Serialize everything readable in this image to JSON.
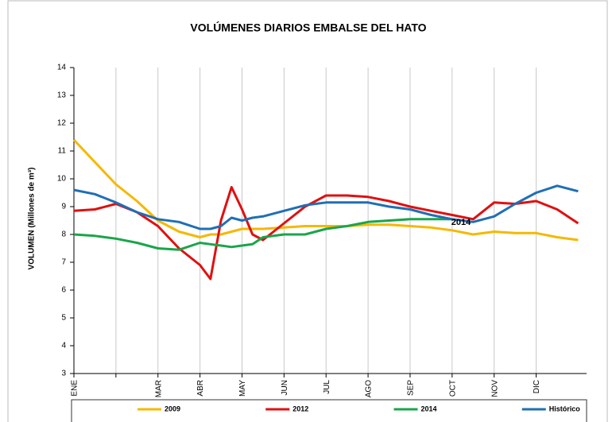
{
  "chart_data": {
    "type": "line",
    "title": "VOLÚMENES DIARIOS EMBALSE DEL HATO",
    "y_label": "VOLUMEN (Millones de m³)",
    "annotation": "2014",
    "x": [
      0,
      0.5,
      1,
      1.5,
      2,
      2.5,
      3,
      3.25,
      3.5,
      3.75,
      4,
      4.25,
      4.5,
      5,
      5.5,
      6,
      6.5,
      7,
      7.5,
      8,
      8.5,
      9,
      9.5,
      10,
      10.5,
      11,
      11.5,
      12
    ],
    "xlim": [
      0,
      12.2
    ],
    "xticks": [
      {
        "value": 0,
        "label": "ENE"
      },
      {
        "value": 1,
        "label": null
      },
      {
        "value": 2,
        "label": "MAR"
      },
      {
        "value": 3,
        "label": "ABR"
      },
      {
        "value": 4,
        "label": "MAY"
      },
      {
        "value": 5,
        "label": "JUN"
      },
      {
        "value": 6,
        "label": "JUL"
      },
      {
        "value": 7,
        "label": "AGO"
      },
      {
        "value": 8,
        "label": "SEP"
      },
      {
        "value": 9,
        "label": "OCT"
      },
      {
        "value": 10,
        "label": "NOV"
      },
      {
        "value": 11,
        "label": "DIC"
      }
    ],
    "ylim": [
      3,
      14
    ],
    "yticks": [
      3,
      4,
      5,
      6,
      7,
      8,
      9,
      10,
      11,
      12,
      13,
      14
    ],
    "grid": "x",
    "legend": "bottom",
    "series": [
      {
        "name": "2009",
        "color": "#f5b800",
        "values": [
          11.4,
          10.6,
          9.8,
          9.2,
          8.5,
          8.1,
          7.9,
          8.0,
          8.0,
          8.1,
          8.2,
          8.2,
          8.2,
          8.25,
          8.3,
          8.3,
          8.3,
          8.35,
          8.35,
          8.3,
          8.25,
          8.15,
          8.0,
          8.1,
          8.05,
          8.05,
          7.9,
          7.8
        ]
      },
      {
        "name": "2012",
        "color": "#e01010",
        "values": [
          8.85,
          8.9,
          9.1,
          8.8,
          8.3,
          7.5,
          6.9,
          6.4,
          8.5,
          9.7,
          8.9,
          8.0,
          7.8,
          8.4,
          9.0,
          9.4,
          9.4,
          9.35,
          9.2,
          9.0,
          8.85,
          8.7,
          8.55,
          9.15,
          9.1,
          9.2,
          8.9,
          8.4
        ]
      },
      {
        "name": "2014",
        "color": "#1aa54a",
        "values": [
          8.0,
          7.95,
          7.85,
          7.7,
          7.5,
          7.45,
          7.7,
          7.65,
          7.6,
          7.55,
          7.6,
          7.65,
          7.9,
          8.0,
          8.0,
          8.2,
          8.3,
          8.45,
          8.5,
          8.55,
          8.55,
          8.55,
          null,
          null,
          null,
          null,
          null,
          null
        ]
      },
      {
        "name": "Histórico",
        "color": "#1f6fb5",
        "values": [
          9.6,
          9.45,
          9.15,
          8.8,
          8.55,
          8.45,
          8.2,
          8.2,
          8.3,
          8.6,
          8.5,
          8.6,
          8.65,
          8.85,
          9.05,
          9.15,
          9.15,
          9.15,
          9.0,
          8.9,
          8.7,
          8.55,
          8.45,
          8.65,
          9.1,
          9.5,
          9.75,
          9.55
        ]
      }
    ]
  }
}
